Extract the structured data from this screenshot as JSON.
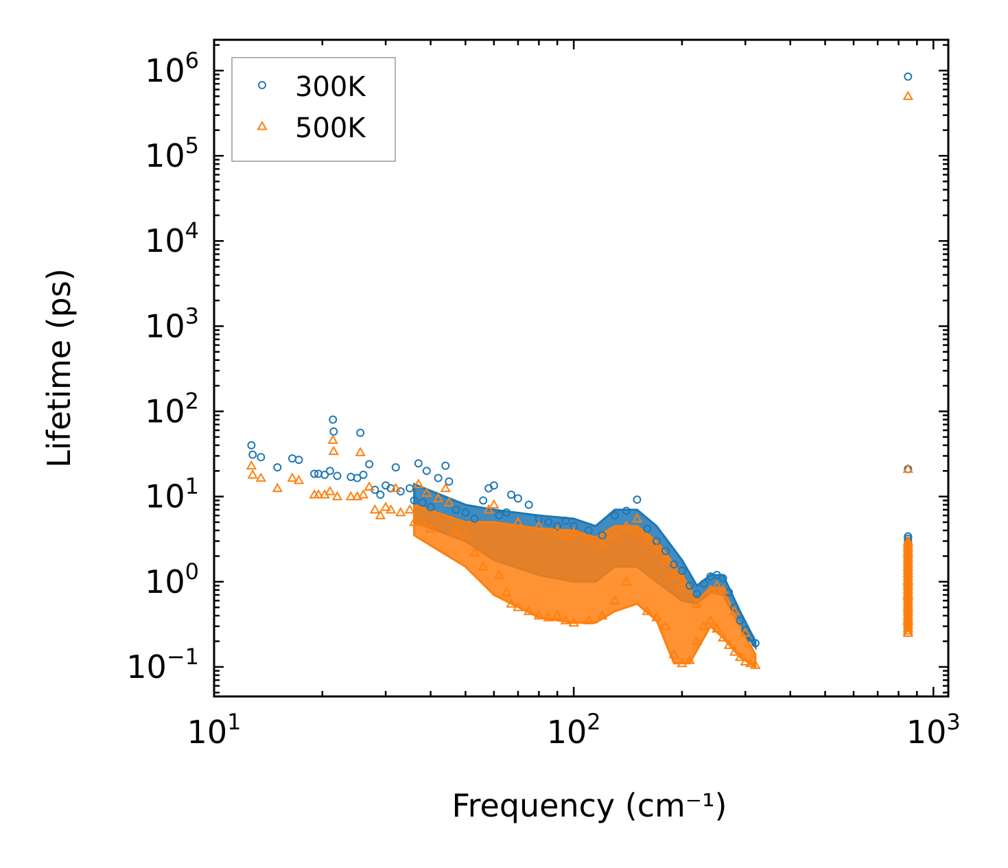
{
  "chart_data": {
    "type": "scatter",
    "title": "",
    "xlabel": "Frequency (cm⁻¹)",
    "ylabel": "Lifetime (ps)",
    "xscale": "log",
    "yscale": "log",
    "xlim": [
      10,
      1100
    ],
    "ylim": [
      0.045,
      2300000
    ],
    "xticks": [
      10,
      100,
      1000
    ],
    "xtick_labels": [
      {
        "base": "10",
        "exp": "1"
      },
      {
        "base": "10",
        "exp": "2"
      },
      {
        "base": "10",
        "exp": "3"
      }
    ],
    "yticks": [
      0.1,
      1,
      10,
      100,
      1000,
      10000,
      100000,
      1000000
    ],
    "ytick_labels": [
      {
        "base": "10",
        "exp": "−1"
      },
      {
        "base": "10",
        "exp": "0"
      },
      {
        "base": "10",
        "exp": "1"
      },
      {
        "base": "10",
        "exp": "2"
      },
      {
        "base": "10",
        "exp": "3"
      },
      {
        "base": "10",
        "exp": "4"
      },
      {
        "base": "10",
        "exp": "5"
      },
      {
        "base": "10",
        "exp": "6"
      }
    ],
    "legend": {
      "placement": "top-left"
    },
    "series": [
      {
        "name": "300K",
        "marker": "circle",
        "color": "#1f77b4",
        "points": [
          [
            12.7,
            40
          ],
          [
            12.8,
            31
          ],
          [
            13.5,
            29
          ],
          [
            15.0,
            22
          ],
          [
            16.5,
            28
          ],
          [
            17.2,
            27
          ],
          [
            19.0,
            18.5
          ],
          [
            19.5,
            18.5
          ],
          [
            20.3,
            18
          ],
          [
            21.0,
            20
          ],
          [
            21.4,
            80
          ],
          [
            21.5,
            58
          ],
          [
            22.0,
            17.5
          ],
          [
            24.0,
            17
          ],
          [
            25.0,
            16.5
          ],
          [
            25.5,
            56
          ],
          [
            26.0,
            18
          ],
          [
            27.0,
            24
          ],
          [
            28.0,
            12
          ],
          [
            29.0,
            10.5
          ],
          [
            30.0,
            13.5
          ],
          [
            31.0,
            12.5
          ],
          [
            32.0,
            22
          ],
          [
            33.0,
            11.5
          ],
          [
            35.0,
            12.5
          ],
          [
            36.0,
            9
          ],
          [
            37.0,
            24.5
          ],
          [
            38.0,
            8.5
          ],
          [
            39.0,
            20
          ],
          [
            40.0,
            7.5
          ],
          [
            42.0,
            16.5
          ],
          [
            44.0,
            23
          ],
          [
            45.0,
            15
          ],
          [
            47.0,
            7
          ],
          [
            50.0,
            6.5
          ],
          [
            53.0,
            5.5
          ],
          [
            56.0,
            9
          ],
          [
            58.0,
            12.5
          ],
          [
            60.0,
            13.5
          ],
          [
            62.0,
            6
          ],
          [
            65.0,
            6.5
          ],
          [
            67.0,
            10.5
          ],
          [
            70.0,
            9.5
          ],
          [
            75.0,
            8
          ],
          [
            80.0,
            5.5
          ],
          [
            85.0,
            5
          ],
          [
            90.0,
            4.5
          ],
          [
            95.0,
            5.2
          ],
          [
            100.0,
            4.5
          ],
          [
            110.0,
            4
          ],
          [
            120.0,
            3.5
          ],
          [
            130.0,
            6
          ],
          [
            140.0,
            6.8
          ],
          [
            150.0,
            9.2
          ],
          [
            160.0,
            4.2
          ],
          [
            170.0,
            3
          ],
          [
            180.0,
            2.3
          ],
          [
            190.0,
            1.6
          ],
          [
            200.0,
            1.35
          ],
          [
            210.0,
            0.9
          ],
          [
            220.0,
            0.72
          ],
          [
            230.0,
            0.95
          ],
          [
            240.0,
            1.15
          ],
          [
            250.0,
            1.2
          ],
          [
            260.0,
            1.1
          ],
          [
            270.0,
            0.75
          ],
          [
            280.0,
            0.5
          ],
          [
            290.0,
            0.35
          ],
          [
            300.0,
            0.27
          ],
          [
            310.0,
            0.22
          ],
          [
            320.0,
            0.19
          ],
          [
            850,
            850000
          ],
          [
            850,
            21
          ],
          [
            850,
            3.4
          ],
          [
            850,
            2.5
          ],
          [
            850,
            1.8
          ],
          [
            850,
            1.2
          ],
          [
            850,
            0.8
          ],
          [
            850,
            0.55
          ],
          [
            850,
            0.4
          ],
          [
            850,
            0.3
          ]
        ]
      },
      {
        "name": "500K",
        "marker": "triangle",
        "color": "#ff7f0e",
        "points": [
          [
            12.7,
            23
          ],
          [
            12.8,
            18
          ],
          [
            13.5,
            16.5
          ],
          [
            15.0,
            12.5
          ],
          [
            16.5,
            16.5
          ],
          [
            17.2,
            15.5
          ],
          [
            19.0,
            10.5
          ],
          [
            19.5,
            10.5
          ],
          [
            20.3,
            10.5
          ],
          [
            21.0,
            11.5
          ],
          [
            21.4,
            46
          ],
          [
            21.5,
            34
          ],
          [
            22.0,
            10
          ],
          [
            24.0,
            10
          ],
          [
            25.0,
            10
          ],
          [
            25.5,
            33
          ],
          [
            26.0,
            10.5
          ],
          [
            27.0,
            13
          ],
          [
            28.0,
            7
          ],
          [
            29.0,
            6
          ],
          [
            30.0,
            7.5
          ],
          [
            31.0,
            7
          ],
          [
            32.0,
            12.5
          ],
          [
            33.0,
            6.5
          ],
          [
            35.0,
            7
          ],
          [
            36.0,
            5
          ],
          [
            37.0,
            14
          ],
          [
            38.0,
            5
          ],
          [
            39.0,
            11
          ],
          [
            40.0,
            4.2
          ],
          [
            42.0,
            9.5
          ],
          [
            44.0,
            12.5
          ],
          [
            45.0,
            8.5
          ],
          [
            47.0,
            3.8
          ],
          [
            50.0,
            3.5
          ],
          [
            53.0,
            2.2
          ],
          [
            56.0,
            1.5
          ],
          [
            58.0,
            7
          ],
          [
            60.0,
            8
          ],
          [
            62.0,
            1.2
          ],
          [
            65.0,
            0.75
          ],
          [
            67.0,
            0.55
          ],
          [
            70.0,
            0.5
          ],
          [
            75.0,
            0.45
          ],
          [
            80.0,
            0.4
          ],
          [
            85.0,
            0.38
          ],
          [
            90.0,
            0.4
          ],
          [
            95.0,
            0.35
          ],
          [
            100.0,
            0.33
          ],
          [
            110.0,
            0.35
          ],
          [
            120.0,
            0.4
          ],
          [
            130.0,
            0.6
          ],
          [
            140.0,
            1.0
          ],
          [
            150.0,
            5.5
          ],
          [
            160.0,
            0.45
          ],
          [
            170.0,
            0.38
          ],
          [
            180.0,
            0.3
          ],
          [
            190.0,
            0.14
          ],
          [
            200.0,
            0.11
          ],
          [
            210.0,
            0.12
          ],
          [
            220.0,
            0.2
          ],
          [
            230.0,
            0.3
          ],
          [
            240.0,
            0.35
          ],
          [
            250.0,
            0.28
          ],
          [
            260.0,
            0.22
          ],
          [
            270.0,
            0.18
          ],
          [
            280.0,
            0.15
          ],
          [
            290.0,
            0.13
          ],
          [
            300.0,
            0.115
          ],
          [
            310.0,
            0.11
          ],
          [
            320.0,
            0.105
          ],
          [
            70,
            5
          ],
          [
            80,
            4.5
          ],
          [
            90,
            4
          ],
          [
            95,
            3.5
          ],
          [
            100,
            3.8
          ],
          [
            110,
            3.2
          ],
          [
            120,
            2.8
          ],
          [
            130,
            3.5
          ],
          [
            140,
            4.5
          ],
          [
            150,
            3.8
          ],
          [
            160,
            3
          ],
          [
            170,
            2.4
          ],
          [
            180,
            1.8
          ],
          [
            190,
            1.2
          ],
          [
            200,
            0.9
          ],
          [
            220,
            0.55
          ],
          [
            240,
            0.8
          ],
          [
            250,
            0.9
          ],
          [
            260,
            0.8
          ],
          [
            280,
            0.45
          ],
          [
            300,
            0.25
          ],
          [
            850,
            500000
          ],
          [
            850,
            21
          ],
          [
            850,
            3.0
          ],
          [
            850,
            2.2
          ],
          [
            850,
            1.5
          ],
          [
            850,
            1.0
          ],
          [
            850,
            0.7
          ],
          [
            850,
            0.5
          ],
          [
            850,
            0.35
          ],
          [
            850,
            0.25
          ]
        ]
      }
    ],
    "bands": [
      {
        "series": "300K",
        "upper": [
          [
            36,
            14
          ],
          [
            50,
            8
          ],
          [
            60,
            7
          ],
          [
            80,
            6
          ],
          [
            100,
            5.5
          ],
          [
            115,
            4.5
          ],
          [
            130,
            7
          ],
          [
            150,
            7
          ],
          [
            170,
            4.5
          ],
          [
            200,
            1.8
          ],
          [
            220,
            0.9
          ],
          [
            240,
            1.2
          ],
          [
            260,
            1.2
          ],
          [
            290,
            0.45
          ],
          [
            320,
            0.2
          ]
        ],
        "lower": [
          [
            36,
            5
          ],
          [
            50,
            3
          ],
          [
            60,
            1.8
          ],
          [
            80,
            1.2
          ],
          [
            100,
            1
          ],
          [
            115,
            1
          ],
          [
            130,
            1.5
          ],
          [
            150,
            1.5
          ],
          [
            170,
            1
          ],
          [
            200,
            0.6
          ],
          [
            220,
            0.55
          ],
          [
            240,
            0.75
          ],
          [
            260,
            0.7
          ],
          [
            290,
            0.3
          ],
          [
            320,
            0.17
          ]
        ]
      },
      {
        "series": "500K",
        "upper": [
          [
            36,
            8
          ],
          [
            50,
            5
          ],
          [
            60,
            5
          ],
          [
            80,
            4.2
          ],
          [
            100,
            4
          ],
          [
            115,
            3.3
          ],
          [
            130,
            4.5
          ],
          [
            150,
            4.5
          ],
          [
            170,
            3
          ],
          [
            200,
            1.2
          ],
          [
            220,
            0.6
          ],
          [
            240,
            0.85
          ],
          [
            260,
            0.85
          ],
          [
            290,
            0.3
          ],
          [
            320,
            0.14
          ]
        ],
        "lower": [
          [
            36,
            3.5
          ],
          [
            50,
            1.5
          ],
          [
            60,
            0.7
          ],
          [
            80,
            0.38
          ],
          [
            100,
            0.33
          ],
          [
            115,
            0.33
          ],
          [
            130,
            0.45
          ],
          [
            150,
            0.55
          ],
          [
            170,
            0.35
          ],
          [
            190,
            0.11
          ],
          [
            210,
            0.11
          ],
          [
            240,
            0.3
          ],
          [
            260,
            0.22
          ],
          [
            290,
            0.13
          ],
          [
            320,
            0.1
          ]
        ]
      }
    ]
  }
}
